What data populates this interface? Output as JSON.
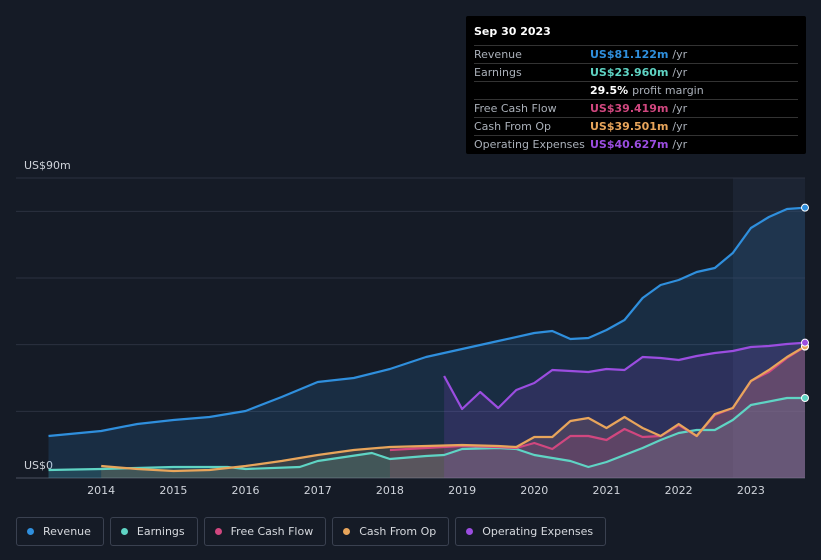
{
  "chart_data": {
    "type": "line",
    "xlim": [
      2012.82,
      2023.75
    ],
    "ylim": [
      0,
      90
    ],
    "xticks": [
      2014,
      2015,
      2016,
      2017,
      2018,
      2019,
      2020,
      2021,
      2022,
      2023
    ],
    "yticks": [
      {
        "value": 0,
        "label": "US$0"
      },
      {
        "value": 90,
        "label": "US$90m"
      }
    ],
    "ygrid": [
      0,
      20,
      40,
      60,
      80,
      90
    ],
    "series": [
      {
        "name": "Revenue",
        "color": "#2f8fdd",
        "x": [
          2013.27,
          2014,
          2014.5,
          2015,
          2015.5,
          2016,
          2016.5,
          2017,
          2017.5,
          2018,
          2018.5,
          2019,
          2019.5,
          2020,
          2020.25,
          2020.5,
          2020.75,
          2021,
          2021.25,
          2021.5,
          2021.75,
          2022,
          2022.25,
          2022.5,
          2022.75,
          2023,
          2023.25,
          2023.5,
          2023.75
        ],
        "values": [
          12.6,
          14.1,
          16.2,
          17.4,
          18.3,
          20.1,
          24.3,
          28.8,
          30,
          32.7,
          36.3,
          38.7,
          41.1,
          43.5,
          44.1,
          41.7,
          42,
          44.4,
          47.4,
          54,
          57.9,
          59.4,
          61.8,
          63,
          67.5,
          75,
          78.3,
          80.7,
          81.1
        ]
      },
      {
        "name": "Earnings",
        "color": "#5fd4c4",
        "x": [
          2013.27,
          2014,
          2015,
          2015.75,
          2016,
          2016.75,
          2017,
          2017.75,
          2018,
          2018.5,
          2018.75,
          2019,
          2019.5,
          2019.75,
          2020,
          2020.5,
          2020.75,
          2021,
          2021.5,
          2021.75,
          2022,
          2022.25,
          2022.5,
          2022.75,
          2023,
          2023.5,
          2023.75
        ],
        "values": [
          2.4,
          2.7,
          3.3,
          3.3,
          2.7,
          3.3,
          5.1,
          7.5,
          5.7,
          6.6,
          6.9,
          8.7,
          9,
          8.7,
          6.9,
          5.1,
          3.3,
          4.8,
          9,
          11.4,
          13.5,
          14.4,
          14.4,
          17.4,
          21.9,
          24,
          24
        ]
      },
      {
        "name": "Free Cash Flow",
        "color": "#d1477f",
        "x": [
          2018,
          2018.5,
          2019,
          2019.5,
          2019.75,
          2020,
          2020.25,
          2020.5,
          2020.75,
          2021,
          2021.25,
          2021.5,
          2021.75,
          2022,
          2022.25,
          2022.5,
          2022.75,
          2023,
          2023.25,
          2023.5,
          2023.75
        ],
        "values": [
          8.4,
          9,
          9.6,
          9.3,
          9,
          10.5,
          8.7,
          12.6,
          12.6,
          11.4,
          14.7,
          12.3,
          12.6,
          15.9,
          12.6,
          18.9,
          21,
          29.1,
          31.8,
          36,
          39.4
        ]
      },
      {
        "name": "Cash From Op",
        "color": "#e8a55b",
        "x": [
          2014,
          2014.5,
          2015,
          2015.5,
          2016,
          2016.5,
          2017,
          2017.5,
          2018,
          2018.5,
          2019,
          2019.5,
          2019.75,
          2020,
          2020.25,
          2020.5,
          2020.75,
          2021,
          2021.25,
          2021.5,
          2021.75,
          2022,
          2022.25,
          2022.5,
          2022.75,
          2023,
          2023.25,
          2023.5,
          2023.75
        ],
        "values": [
          3.6,
          2.7,
          2.1,
          2.4,
          3.6,
          5.1,
          6.9,
          8.4,
          9.3,
          9.6,
          9.9,
          9.6,
          9.3,
          12.3,
          12.3,
          17.1,
          18,
          15,
          18.3,
          15,
          12.6,
          16.2,
          12.6,
          19.2,
          21,
          29.1,
          32.4,
          36.3,
          39.5
        ]
      },
      {
        "name": "Operating Expenses",
        "color": "#9b4de0",
        "x": [
          2018.75,
          2019,
          2019.25,
          2019.5,
          2019.75,
          2020,
          2020.25,
          2020.5,
          2020.75,
          2021,
          2021.25,
          2021.5,
          2021.75,
          2022,
          2022.25,
          2022.5,
          2022.75,
          2023,
          2023.25,
          2023.5,
          2023.75
        ],
        "values": [
          30.6,
          20.7,
          25.8,
          21,
          26.4,
          28.5,
          32.4,
          32.1,
          31.8,
          32.7,
          32.4,
          36.3,
          36,
          35.4,
          36.6,
          37.5,
          38.1,
          39.3,
          39.6,
          40.2,
          40.6
        ]
      }
    ],
    "tooltip": {
      "date": "Sep 30 2023",
      "rows": [
        {
          "label": "Revenue",
          "value": "US$81.122m",
          "unit": "/yr",
          "color": "#2f8fdd"
        },
        {
          "label": "Earnings",
          "value": "US$23.960m",
          "unit": "/yr",
          "color": "#5fd4c4"
        },
        {
          "value": "29.5%",
          "unit": "profit margin",
          "color": "#ffffff"
        },
        {
          "label": "Free Cash Flow",
          "value": "US$39.419m",
          "unit": "/yr",
          "color": "#d1477f"
        },
        {
          "label": "Cash From Op",
          "value": "US$39.501m",
          "unit": "/yr",
          "color": "#e8a55b"
        },
        {
          "label": "Operating Expenses",
          "value": "US$40.627m",
          "unit": "/yr",
          "color": "#9b4de0"
        }
      ]
    }
  }
}
